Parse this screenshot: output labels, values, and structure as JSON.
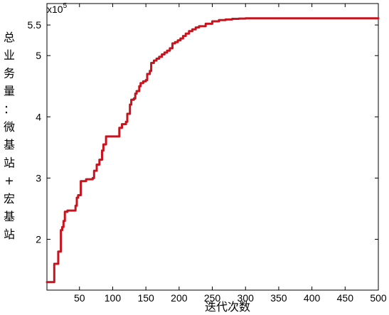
{
  "chart_data": {
    "type": "line",
    "xlabel": "迭代次数",
    "ylabel": "总业务量：微基站+宏基站",
    "ylabel_chars": [
      "总",
      "业",
      "务",
      "量",
      "：",
      "微",
      "基",
      "站",
      "+",
      "宏",
      "基",
      "站"
    ],
    "y_multiplier_text": "x10",
    "y_multiplier_exp": "5",
    "xlim": [
      1,
      500
    ],
    "ylim": [
      1.17,
      5.85
    ],
    "y_unit_scale": 100000,
    "x_ticks": [
      50,
      100,
      150,
      200,
      250,
      300,
      350,
      400,
      450,
      500
    ],
    "x_tick_labels": [
      "50",
      "100",
      "150",
      "200",
      "250",
      "300",
      "350",
      "400",
      "450",
      "500"
    ],
    "y_ticks": [
      2,
      3,
      4,
      5,
      5.5
    ],
    "y_tick_labels": [
      "2",
      "3",
      "4",
      "5",
      "5.5"
    ],
    "grid": false,
    "line_color": "#c8141e",
    "series": [
      {
        "step": true,
        "x": [
          1,
          9,
          12,
          18,
          22,
          24,
          26,
          28,
          32,
          44,
          46,
          48,
          52,
          60,
          70,
          72,
          76,
          80,
          84,
          86,
          90,
          94,
          108,
          110,
          114,
          116,
          120,
          122,
          126,
          128,
          132,
          134,
          136,
          140,
          142,
          146,
          150,
          152,
          156,
          158,
          162,
          166,
          170,
          174,
          178,
          182,
          186,
          190,
          194,
          198,
          202,
          206,
          210,
          215,
          220,
          225,
          230,
          240,
          250,
          260,
          270,
          280,
          290,
          300,
          320,
          350,
          400,
          450,
          500
        ],
        "y": [
          1.3,
          1.3,
          1.6,
          1.8,
          2.15,
          2.2,
          2.3,
          2.45,
          2.47,
          2.55,
          2.68,
          2.72,
          2.95,
          2.98,
          3.0,
          3.12,
          3.22,
          3.3,
          3.45,
          3.55,
          3.68,
          3.68,
          3.68,
          3.82,
          3.88,
          3.88,
          3.92,
          4.05,
          4.2,
          4.28,
          4.3,
          4.38,
          4.42,
          4.5,
          4.55,
          4.58,
          4.6,
          4.7,
          4.75,
          4.88,
          4.92,
          4.95,
          4.98,
          5.02,
          5.05,
          5.08,
          5.12,
          5.2,
          5.22,
          5.25,
          5.28,
          5.32,
          5.36,
          5.4,
          5.43,
          5.46,
          5.48,
          5.52,
          5.56,
          5.58,
          5.59,
          5.6,
          5.605,
          5.61,
          5.61,
          5.61,
          5.61,
          5.61,
          5.61
        ]
      }
    ]
  }
}
